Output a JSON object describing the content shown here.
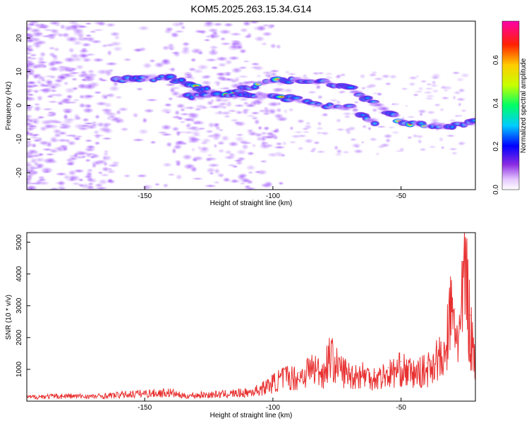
{
  "title": "KOM5.2025.263.15.34.G14",
  "chart_data": [
    {
      "type": "heatmap",
      "xlabel": "Height of straight line (km)",
      "ylabel": "Frequency (Hz)",
      "xlim": [
        -196,
        -21
      ],
      "ylim": [
        -25,
        25
      ],
      "xticks": [
        -150,
        -100,
        -50
      ],
      "yticks": [
        -20,
        -10,
        0,
        10,
        20
      ],
      "colorbar": {
        "label": "Normalized spectral amplitude",
        "range": [
          0,
          0.78
        ],
        "ticks": [
          0.0,
          0.2,
          0.4,
          0.6
        ]
      },
      "tracks": [
        {
          "name": "upper-trace",
          "x": [
            -162,
            -150,
            -140,
            -120,
            -100,
            -85,
            -70,
            -60,
            -50,
            -40,
            -30,
            -21
          ],
          "y": [
            7.5,
            8.0,
            8.0,
            3.0,
            7.5,
            7.5,
            5.0,
            0.5,
            -4.5,
            -6.0,
            -6.0,
            -5.0
          ]
        },
        {
          "name": "lower-trace",
          "x": [
            -135,
            -120,
            -100,
            -80,
            -70,
            -60
          ],
          "y": [
            3.0,
            3.0,
            3.0,
            0.0,
            -0.5,
            -5.5
          ]
        }
      ]
    },
    {
      "type": "line",
      "xlabel": "Height of straight line (km)",
      "ylabel": "SNR (10 * v/v)",
      "xlim": [
        -196,
        -21
      ],
      "ylim": [
        0,
        5300
      ],
      "xticks": [
        -150,
        -100,
        -50
      ],
      "yticks": [
        1000,
        2000,
        3000,
        4000,
        5000
      ],
      "series": [
        {
          "name": "SNR",
          "color": "#e83030",
          "x": [
            -196,
            -190,
            -180,
            -170,
            -160,
            -155,
            -150,
            -140,
            -135,
            -130,
            -120,
            -110,
            -105,
            -100,
            -95,
            -90,
            -85,
            -80,
            -78,
            -75,
            -70,
            -65,
            -60,
            -55,
            -50,
            -45,
            -40,
            -36,
            -33,
            -31,
            -29,
            -27,
            -25,
            -23,
            -21
          ],
          "y": [
            150,
            180,
            200,
            180,
            240,
            280,
            300,
            330,
            200,
            230,
            270,
            330,
            450,
            700,
            950,
            900,
            1300,
            1100,
            1800,
            1350,
            1000,
            1050,
            900,
            1050,
            1250,
            1050,
            1200,
            1700,
            1500,
            3400,
            2900,
            2500,
            5300,
            2700,
            1600
          ]
        }
      ]
    }
  ]
}
